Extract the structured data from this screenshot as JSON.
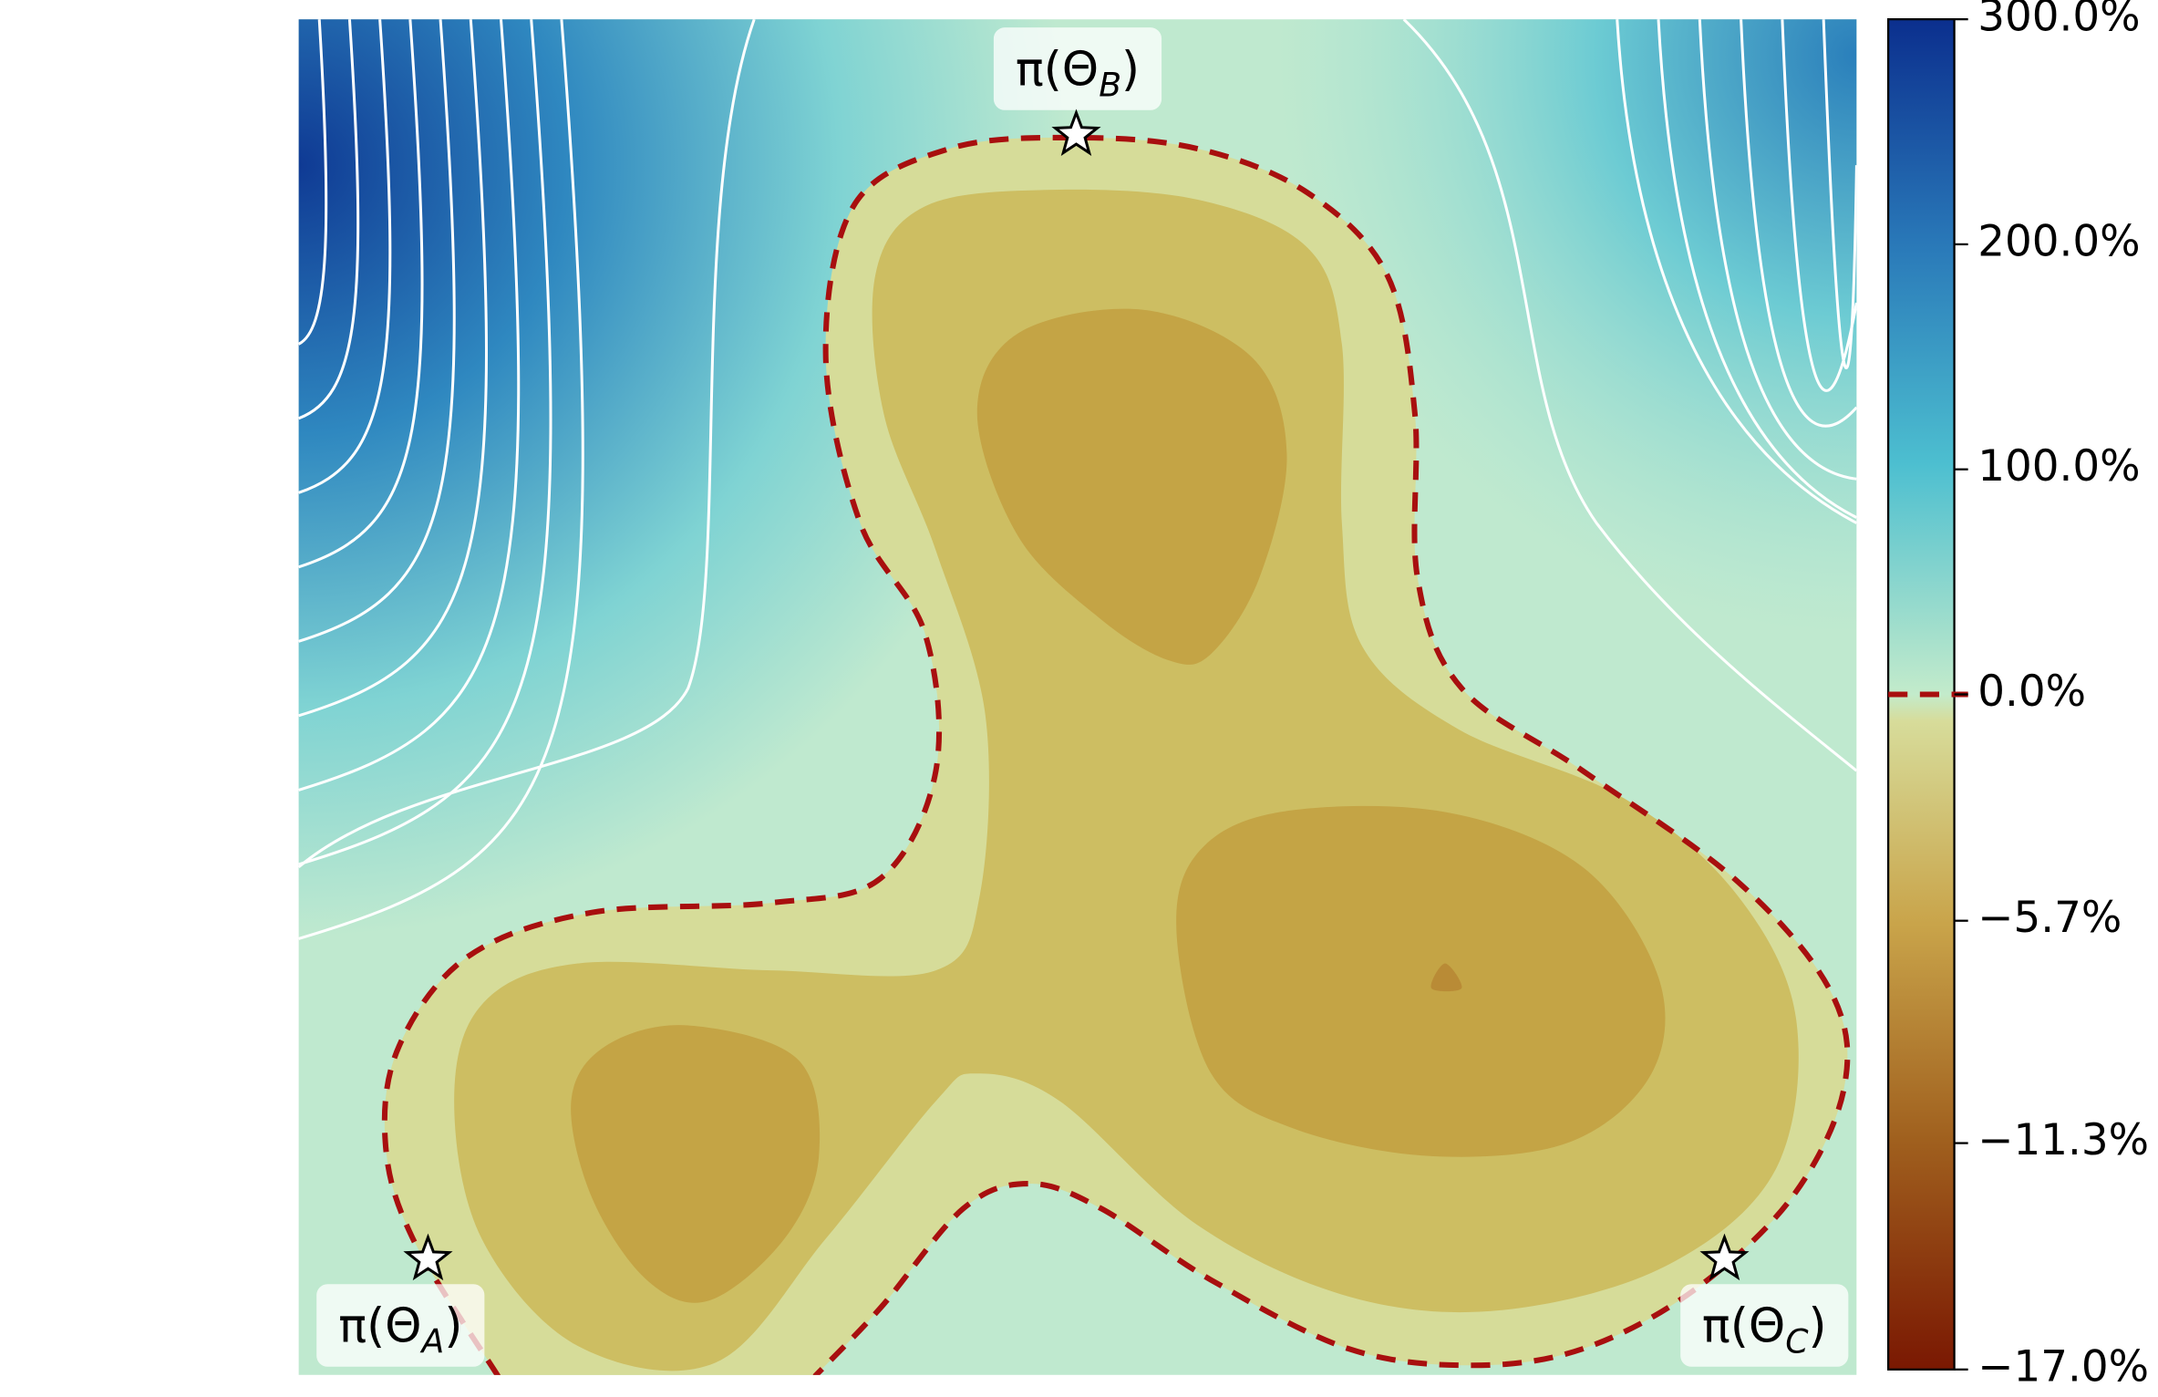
{
  "chart_data": {
    "type": "contour",
    "levels": [
      0,
      -2.8,
      -5.7,
      -8.5
    ],
    "level_colors": [
      "#d6dc99",
      "#cdbe62",
      "#c4a445",
      "#b98b36"
    ],
    "boundary_level": 0,
    "boundary_color": "#a80f0f",
    "colorbar": {
      "lim": [
        -17,
        300
      ],
      "center": 0,
      "ticks": [
        {
          "value": 300,
          "label": "300.0%"
        },
        {
          "value": 200,
          "label": "200.0%"
        },
        {
          "value": 100,
          "label": "100.0%"
        },
        {
          "value": 0,
          "label": "0.0%"
        },
        {
          "value": -5.7,
          "label": "−5.7%"
        },
        {
          "value": -11.3,
          "label": "−11.3%"
        },
        {
          "value": -17,
          "label": "−17.0%"
        }
      ]
    },
    "points": [
      {
        "label": [
          "π(Θ",
          "A",
          ")"
        ]
      },
      {
        "label": [
          "π(Θ",
          "B",
          ")"
        ]
      },
      {
        "label": [
          "π(Θ",
          "C",
          ")"
        ]
      }
    ]
  }
}
